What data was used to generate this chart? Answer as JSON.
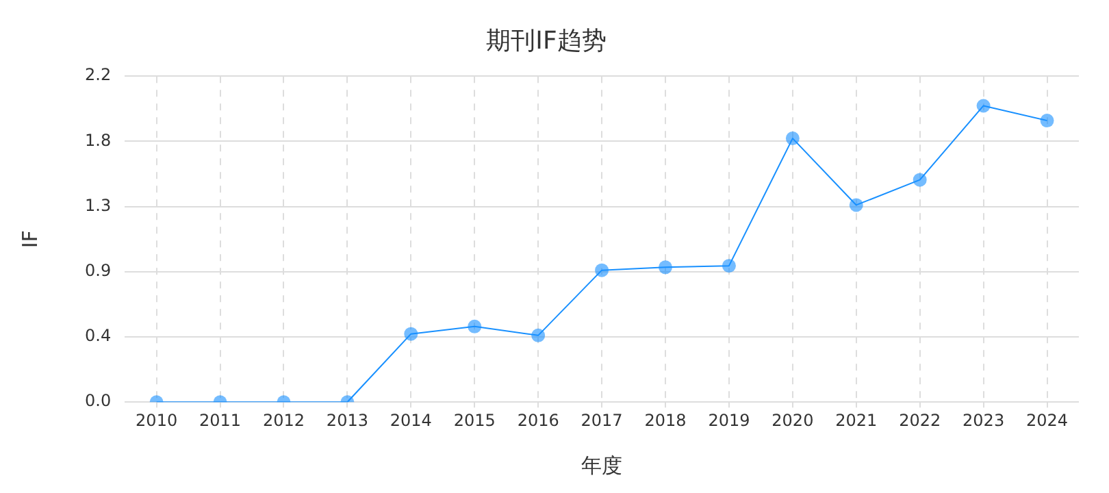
{
  "chart_data": {
    "type": "line",
    "title": "期刊IF趋势",
    "xlabel": "年度",
    "ylabel": "IF",
    "categories": [
      "2010",
      "2011",
      "2012",
      "2013",
      "2014",
      "2015",
      "2016",
      "2017",
      "2018",
      "2019",
      "2020",
      "2021",
      "2022",
      "2023",
      "2024"
    ],
    "series": [
      {
        "color": "#1890ff",
        "values": [
          0,
          0,
          0,
          0,
          0.46,
          0.51,
          0.45,
          0.89,
          0.91,
          0.92,
          1.78,
          1.33,
          1.5,
          2.0,
          1.9
        ]
      }
    ],
    "ylim": [
      0,
      2.2
    ],
    "yticks": [
      {
        "value": 0,
        "label": "0.0"
      },
      {
        "value": 0.44,
        "label": "0.4"
      },
      {
        "value": 0.88,
        "label": "0.9"
      },
      {
        "value": 1.32,
        "label": "1.3"
      },
      {
        "value": 1.76,
        "label": "1.8"
      },
      {
        "value": 2.2,
        "label": "2.2"
      }
    ],
    "grid": true,
    "marker": "circle",
    "line_style": "solid",
    "legend": false
  }
}
